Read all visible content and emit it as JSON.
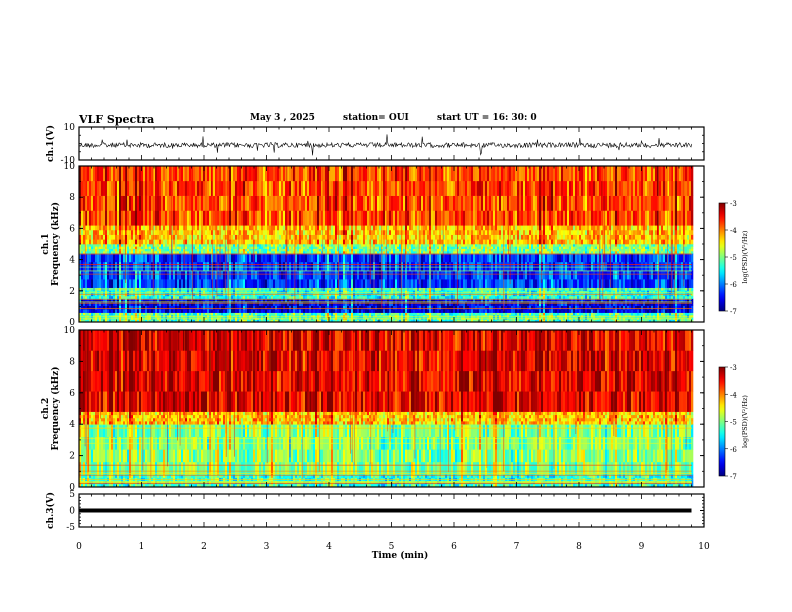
{
  "header": {
    "title": "VLF Spectra",
    "date": "May 3  , 2025",
    "station": "station= OUI",
    "start": "start  UT  =   16: 30: 0"
  },
  "colors": {
    "accent_red": "#ff2a1a",
    "accent_yellow": "#ffd21a",
    "accent_green": "#28e060",
    "accent_cyan": "#20d8e0",
    "accent_blue": "#0a2be0",
    "accent_navy": "#000070"
  },
  "chart_data": [
    {
      "type": "line",
      "ylabel": "ch.1(V)",
      "ylim": [
        -10,
        10
      ],
      "yticks": [
        "10",
        "-10"
      ],
      "x": [
        0,
        0.5,
        1,
        1.5,
        2,
        2.5,
        3,
        3.5,
        4,
        4.5,
        5,
        5.5,
        6,
        6.5,
        7,
        7.5,
        8,
        8.5,
        9,
        9.5,
        9.8
      ],
      "values": [
        -1,
        -1,
        -1,
        -1,
        -1,
        -1,
        -1,
        -1,
        -1,
        -1,
        -1,
        -1,
        -1,
        -1,
        -1,
        -1,
        -1,
        -1,
        -1,
        -1,
        -1
      ],
      "grid": false
    },
    {
      "type": "heatmap",
      "ylabel": "ch.1\nFrequency  (kHz)",
      "ylim": [
        0,
        10
      ],
      "yticks": [
        "0",
        "2",
        "4",
        "6",
        "8",
        "10"
      ],
      "bands_khz": [
        {
          "from": 0,
          "to": 0.6,
          "level": -5.2
        },
        {
          "from": 0.6,
          "to": 1.5,
          "level": -6.6
        },
        {
          "from": 1.5,
          "to": 2.2,
          "level": -5.4
        },
        {
          "from": 2.2,
          "to": 4.4,
          "level": -6.3
        },
        {
          "from": 4.4,
          "to": 5.0,
          "level": -5.0
        },
        {
          "from": 5.0,
          "to": 6.2,
          "level": -4.3
        },
        {
          "from": 6.2,
          "to": 10,
          "level": -3.8
        }
      ],
      "colorbar": {
        "label": "log(PSD)(V²/Hz)",
        "ticks": [
          "-3",
          "-4",
          "-5",
          "-6",
          "-7"
        ],
        "range": [
          -7,
          -3
        ]
      }
    },
    {
      "type": "heatmap",
      "ylabel": "ch.2\nFrequency  (kHz)",
      "ylim": [
        0,
        10
      ],
      "yticks": [
        "0",
        "2",
        "4",
        "6",
        "8",
        "10"
      ],
      "bands_khz": [
        {
          "from": 0,
          "to": 0.8,
          "level": -5.3
        },
        {
          "from": 0.8,
          "to": 4.0,
          "level": -5.0
        },
        {
          "from": 4.0,
          "to": 4.8,
          "level": -4.3
        },
        {
          "from": 4.8,
          "to": 10,
          "level": -3.4
        }
      ],
      "colorbar": {
        "label": "log(PSD)(V²/Hz)",
        "ticks": [
          "-3",
          "-4",
          "-5",
          "-6",
          "-7"
        ],
        "range": [
          -7,
          -3
        ]
      }
    },
    {
      "type": "line",
      "ylabel": "ch.3(V)",
      "ylim": [
        -5,
        5
      ],
      "yticks": [
        "5",
        "0",
        "-5"
      ],
      "x": [
        0,
        9.8
      ],
      "values": [
        0,
        0
      ],
      "grid": false
    }
  ],
  "xaxis": {
    "label": "Time  (min)",
    "xlim": [
      0,
      10
    ],
    "ticks": [
      "0",
      "1",
      "2",
      "3",
      "4",
      "5",
      "6",
      "7",
      "8",
      "9",
      "10"
    ]
  }
}
